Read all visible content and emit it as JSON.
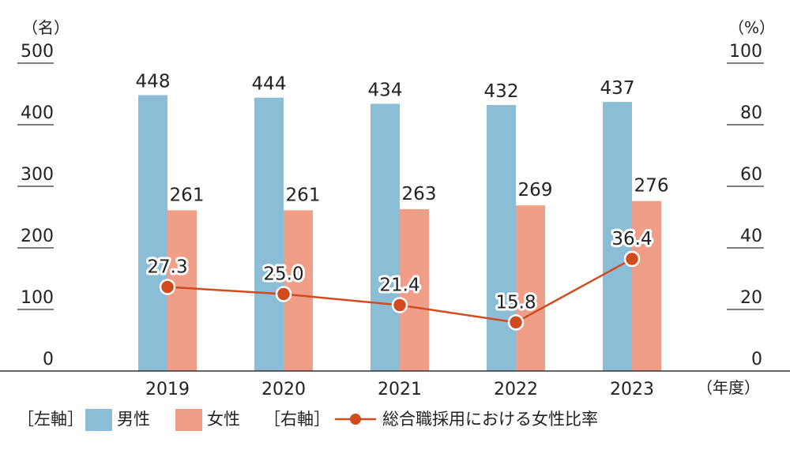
{
  "chart_data": {
    "type": "bar",
    "categories": [
      "2019",
      "2020",
      "2021",
      "2022",
      "2023"
    ],
    "series": [
      {
        "name": "男性",
        "axis": "left",
        "kind": "bar",
        "color": "#8bbdd6",
        "values": [
          448,
          444,
          434,
          432,
          437
        ]
      },
      {
        "name": "女性",
        "axis": "left",
        "kind": "bar",
        "color": "#f19e88",
        "values": [
          261,
          261,
          263,
          269,
          276
        ]
      },
      {
        "name": "総合職採用における女性比率",
        "axis": "right",
        "kind": "line",
        "color": "#d14b1f",
        "values": [
          27.3,
          25.0,
          21.4,
          15.8,
          36.4
        ]
      }
    ],
    "left_axis": {
      "unit": "（名）",
      "ticks": [
        "0",
        "100",
        "200",
        "300",
        "400",
        "500"
      ],
      "ylim": [
        0,
        500
      ]
    },
    "right_axis": {
      "unit": "（%）",
      "ticks": [
        "0",
        "20",
        "40",
        "60",
        "80",
        "100"
      ],
      "ylim": [
        0,
        100
      ]
    },
    "x_unit": "（年度）",
    "legend": {
      "left_tag": "［左軸］",
      "right_tag": "［右軸］",
      "items": [
        "男性",
        "女性",
        "総合職採用における女性比率"
      ],
      "placement": "bottom"
    },
    "grid": false
  }
}
